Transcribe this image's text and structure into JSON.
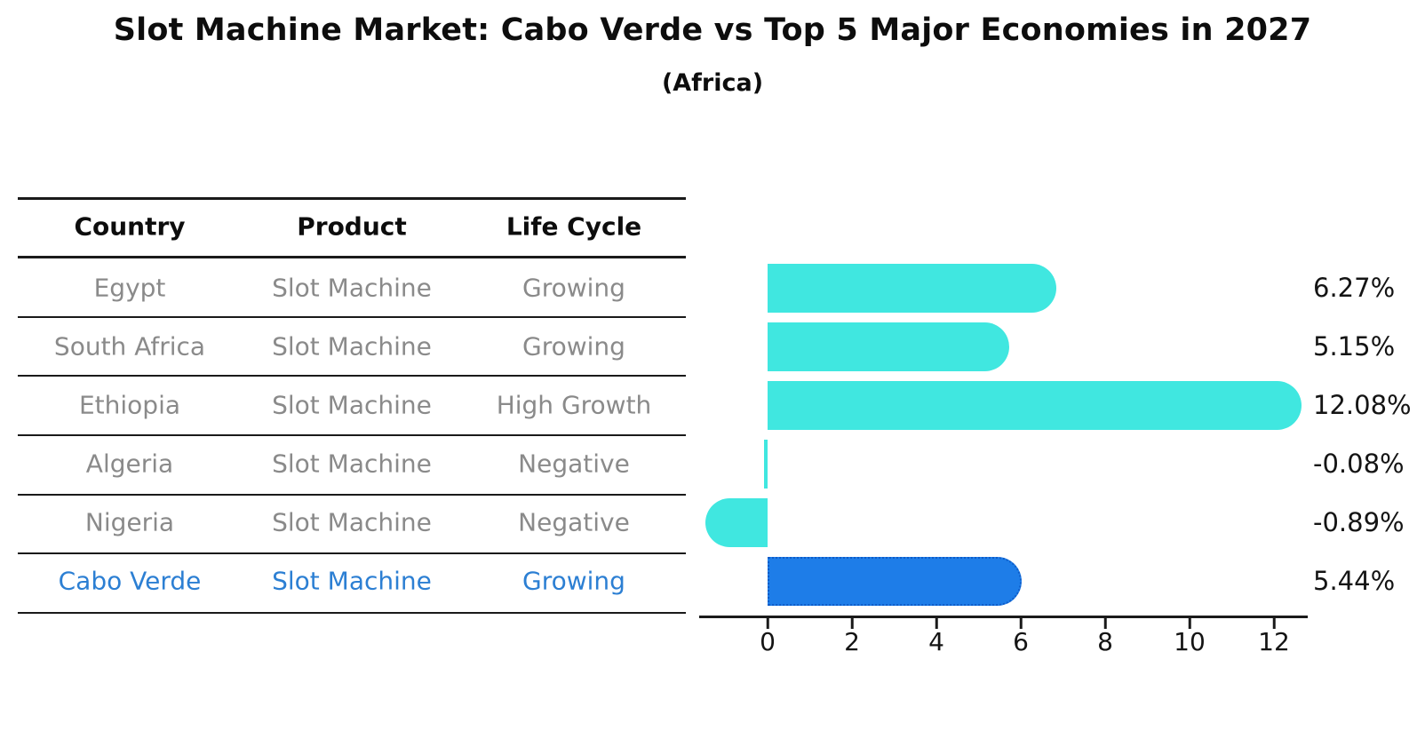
{
  "title": "Slot Machine Market: Cabo Verde vs Top 5 Major Economies in 2027",
  "subtitle": "(Africa)",
  "table": {
    "headers": [
      "Country",
      "Product",
      "Life Cycle"
    ],
    "rows": [
      [
        "Egypt",
        "Slot Machine",
        "Growing"
      ],
      [
        "South Africa",
        "Slot Machine",
        "Growing"
      ],
      [
        "Ethiopia",
        "Slot Machine",
        "High Growth"
      ],
      [
        "Algeria",
        "Slot Machine",
        "Negative"
      ],
      [
        "Nigeria",
        "Slot Machine",
        "Negative"
      ],
      [
        "Cabo Verde",
        "Slot Machine",
        "Growing"
      ]
    ],
    "highlight_row_index": 5
  },
  "chart_data": {
    "type": "bar",
    "orientation": "horizontal",
    "categories": [
      "Egypt",
      "South Africa",
      "Ethiopia",
      "Algeria",
      "Nigeria",
      "Cabo Verde"
    ],
    "values": [
      6.27,
      5.15,
      12.08,
      -0.08,
      -0.89,
      5.44
    ],
    "value_labels": [
      "6.27%",
      "5.15%",
      "12.08%",
      "-0.08%",
      "-0.89%",
      "5.44%"
    ],
    "xticks": [
      0,
      2,
      4,
      6,
      8,
      10,
      12
    ],
    "xtick_labels": [
      "0",
      "2",
      "4",
      "6",
      "8",
      "10",
      "12"
    ],
    "xlim": [
      -1.6,
      12.8
    ],
    "grid": false,
    "legend": false,
    "bar_color": "#40e7e0",
    "highlight_bar_color": "#1e7de8",
    "highlight_index": 5
  },
  "colors": {
    "header_text": "#0d0d0d",
    "row_text": "#8a8a8a",
    "highlight_text": "#2c7fd3",
    "value_text": "#141414",
    "axis": "#1a1a1a"
  }
}
